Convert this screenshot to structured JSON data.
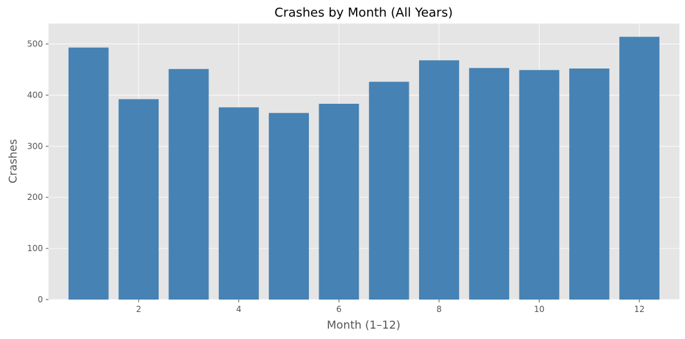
{
  "chart_data": {
    "type": "bar",
    "title": "Crashes by Month (All Years)",
    "xlabel": "Month (1–12)",
    "ylabel": "Crashes",
    "x": [
      1,
      2,
      3,
      4,
      5,
      6,
      7,
      8,
      9,
      10,
      11,
      12
    ],
    "values": [
      493,
      392,
      451,
      376,
      365,
      383,
      426,
      468,
      453,
      449,
      452,
      514
    ],
    "xlim": [
      0.2,
      12.8
    ],
    "ylim": [
      0,
      540
    ],
    "xticks": [
      2,
      4,
      6,
      8,
      10,
      12
    ],
    "yticks": [
      0,
      100,
      200,
      300,
      400,
      500
    ],
    "bar_color": "#4682b4",
    "background_color": "#e5e5e5",
    "grid_color": "#ffffff",
    "grid": true,
    "legend": false
  }
}
